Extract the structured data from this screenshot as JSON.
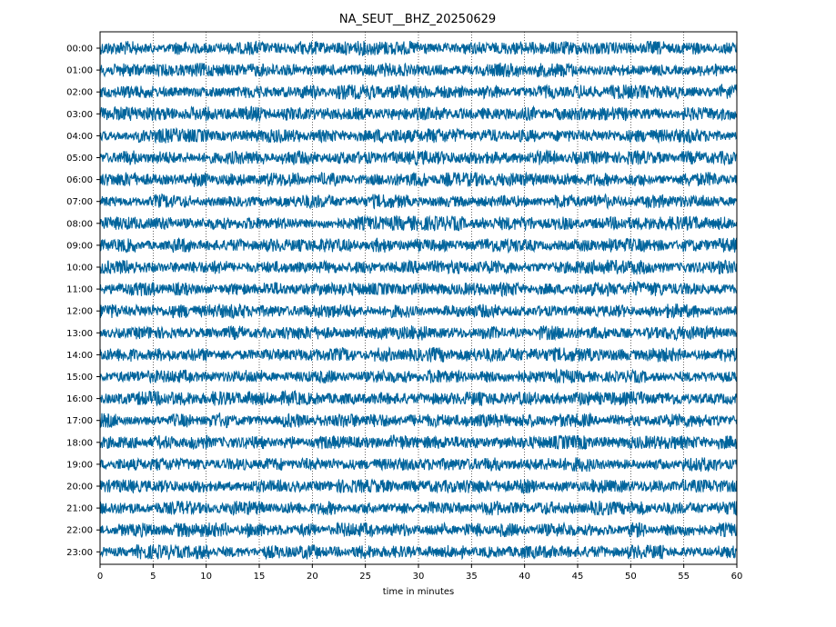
{
  "chart_data": {
    "type": "line",
    "title": "NA_SEUT__BHZ_20250629",
    "xlabel": "time in minutes",
    "ylabel": "",
    "xlim": [
      0,
      60
    ],
    "x_ticks": [
      0,
      5,
      10,
      15,
      20,
      25,
      30,
      35,
      40,
      45,
      50,
      55,
      60
    ],
    "y_tick_labels": [
      "00:00",
      "01:00",
      "02:00",
      "03:00",
      "04:00",
      "05:00",
      "06:00",
      "07:00",
      "08:00",
      "09:00",
      "10:00",
      "11:00",
      "12:00",
      "13:00",
      "14:00",
      "15:00",
      "16:00",
      "17:00",
      "18:00",
      "19:00",
      "20:00",
      "21:00",
      "22:00",
      "23:00"
    ],
    "grid": "vertical dotted at x ticks",
    "trace_color": "#00649c",
    "series_description": "24 hourly seismogram traces (one per hour), continuous noise-like waveform spanning 0–60 minutes"
  }
}
